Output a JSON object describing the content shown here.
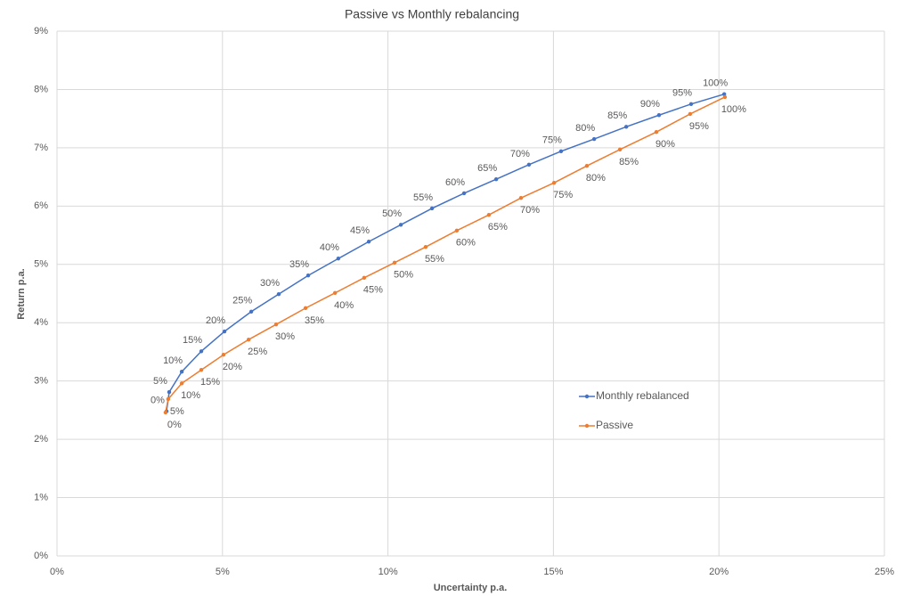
{
  "chart_data": {
    "type": "scatter",
    "title": "Passive vs Monthly rebalancing",
    "x_label": "Uncertainty p.a.",
    "y_label": "Return p.a.",
    "xlim": [
      0,
      25
    ],
    "xticks": [
      {
        "value": 0,
        "label": "0%"
      },
      {
        "value": 5,
        "label": "5%"
      },
      {
        "value": 10,
        "label": "10%"
      },
      {
        "value": 15,
        "label": "15%"
      },
      {
        "value": 20,
        "label": "20%"
      },
      {
        "value": 25,
        "label": "25%"
      }
    ],
    "ylim": [
      0,
      9
    ],
    "yticks": [
      {
        "value": 0,
        "label": "0%"
      },
      {
        "value": 1,
        "label": "1%"
      },
      {
        "value": 2,
        "label": "2%"
      },
      {
        "value": 3,
        "label": "3%"
      },
      {
        "value": 4,
        "label": "4%"
      },
      {
        "value": 5,
        "label": "5%"
      },
      {
        "value": 6,
        "label": "6%"
      },
      {
        "value": 7,
        "label": "7%"
      },
      {
        "value": 8,
        "label": "8%"
      },
      {
        "value": 9,
        "label": "9%"
      }
    ],
    "grid": true,
    "legend": "right",
    "series": [
      {
        "name": "Monthly rebalanced",
        "color": "#4472c4",
        "x": [
          3.31,
          3.39,
          3.77,
          4.36,
          5.06,
          5.87,
          6.7,
          7.59,
          8.5,
          9.42,
          10.39,
          11.33,
          12.3,
          13.27,
          14.26,
          15.23,
          16.23,
          17.2,
          18.19,
          19.16,
          20.16
        ],
        "values": [
          2.48,
          2.81,
          3.16,
          3.51,
          3.85,
          4.19,
          4.49,
          4.81,
          5.1,
          5.39,
          5.68,
          5.96,
          6.22,
          6.46,
          6.71,
          6.94,
          7.15,
          7.36,
          7.56,
          7.75,
          7.92
        ],
        "labels": [
          "0%",
          "5%",
          "10%",
          "15%",
          "20%",
          "25%",
          "30%",
          "35%",
          "40%",
          "45%",
          "50%",
          "55%",
          "60%",
          "65%",
          "70%",
          "75%",
          "80%",
          "85%",
          "90%",
          "95%",
          "100%"
        ]
      },
      {
        "name": "Passive",
        "color": "#ed7d31",
        "x": [
          3.28,
          3.36,
          3.77,
          4.36,
          5.03,
          5.79,
          6.62,
          7.51,
          8.4,
          9.28,
          10.2,
          11.14,
          12.08,
          13.05,
          14.02,
          15.02,
          16.01,
          17.01,
          18.11,
          19.13,
          20.18
        ],
        "values": [
          2.46,
          2.69,
          2.96,
          3.19,
          3.45,
          3.71,
          3.97,
          4.25,
          4.51,
          4.77,
          5.03,
          5.3,
          5.58,
          5.85,
          6.14,
          6.4,
          6.69,
          6.97,
          7.27,
          7.58,
          7.87
        ],
        "labels": [
          "0%",
          "5%",
          "10%",
          "15%",
          "20%",
          "25%",
          "30%",
          "35%",
          "40%",
          "45%",
          "50%",
          "55%",
          "60%",
          "65%",
          "70%",
          "75%",
          "80%",
          "85%",
          "90%",
          "95%",
          "100%"
        ]
      }
    ]
  }
}
